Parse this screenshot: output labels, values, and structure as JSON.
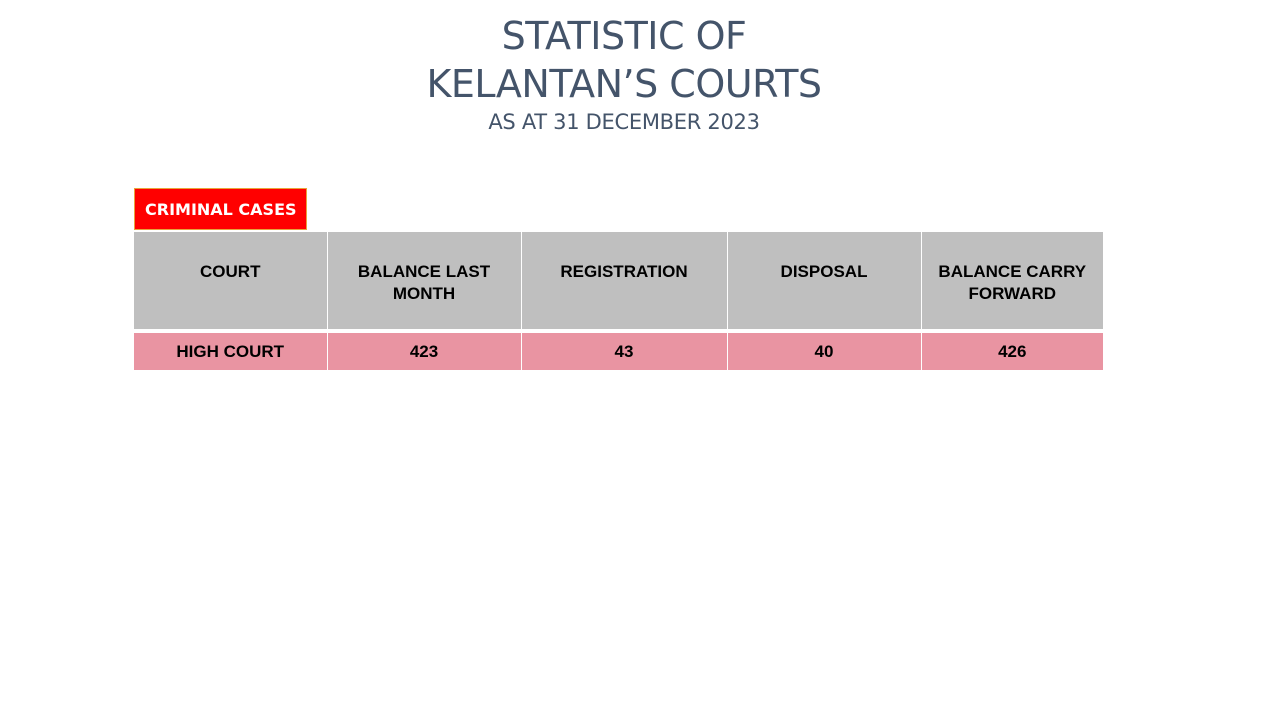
{
  "header": {
    "title_line1": "STATISTIC OF",
    "title_line2": "KELANTAN’S COURTS",
    "subtitle": "AS AT 31 DECEMBER 2023"
  },
  "section": {
    "label": "CRIMINAL CASES"
  },
  "colors": {
    "title": "#44546a",
    "section_tag_bg": "#ff0000",
    "header_bg": "#bfbfbf",
    "row_bg": "#e994a2"
  },
  "table": {
    "columns": [
      "COURT",
      "BALANCE LAST MONTH",
      "REGISTRATION",
      "DISPOSAL",
      "BALANCE CARRY FORWARD"
    ],
    "rows": [
      [
        "HIGH COURT",
        "423",
        "43",
        "40",
        "426"
      ]
    ]
  }
}
